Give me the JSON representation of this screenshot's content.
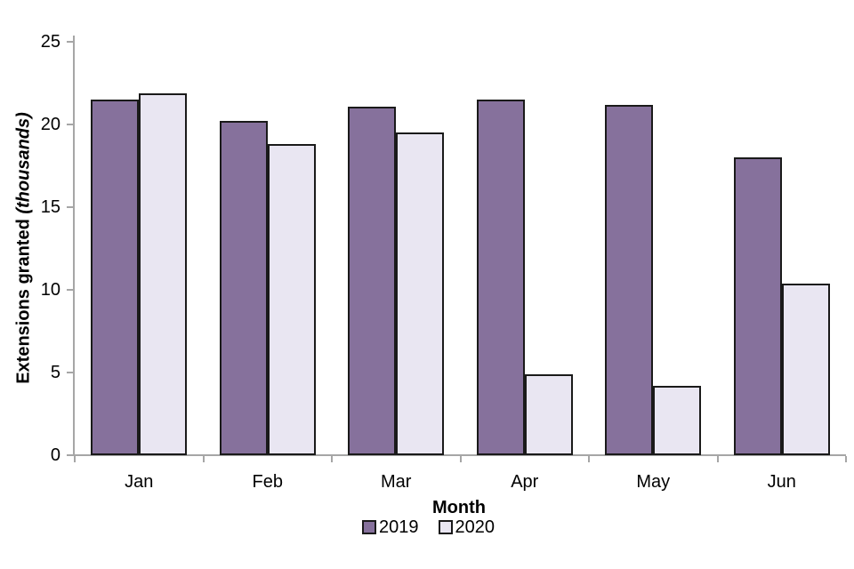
{
  "chart_data": {
    "type": "bar",
    "categories": [
      "Jan",
      "Feb",
      "Mar",
      "Apr",
      "May",
      "Jun"
    ],
    "series": [
      {
        "name": "2019",
        "color": "#86719C",
        "values": [
          21.5,
          20.2,
          21.1,
          21.5,
          21.2,
          18.0
        ]
      },
      {
        "name": "2020",
        "color": "#E9E6F2",
        "values": [
          21.9,
          18.8,
          19.5,
          4.9,
          4.2,
          10.4
        ]
      }
    ],
    "title": "",
    "xlabel": "Month",
    "ylabel_bold": "Extensions granted ",
    "ylabel_unit": "(thousands)",
    "yticks": [
      0,
      5,
      10,
      15,
      20,
      25
    ],
    "ylim": [
      0,
      25
    ],
    "grid": false,
    "legend_position": "bottom-center",
    "colors": {
      "bar_border": "#1A1A1A",
      "axis": "#A6A6A6",
      "text": "#000000",
      "background": "#FFFFFF"
    }
  }
}
